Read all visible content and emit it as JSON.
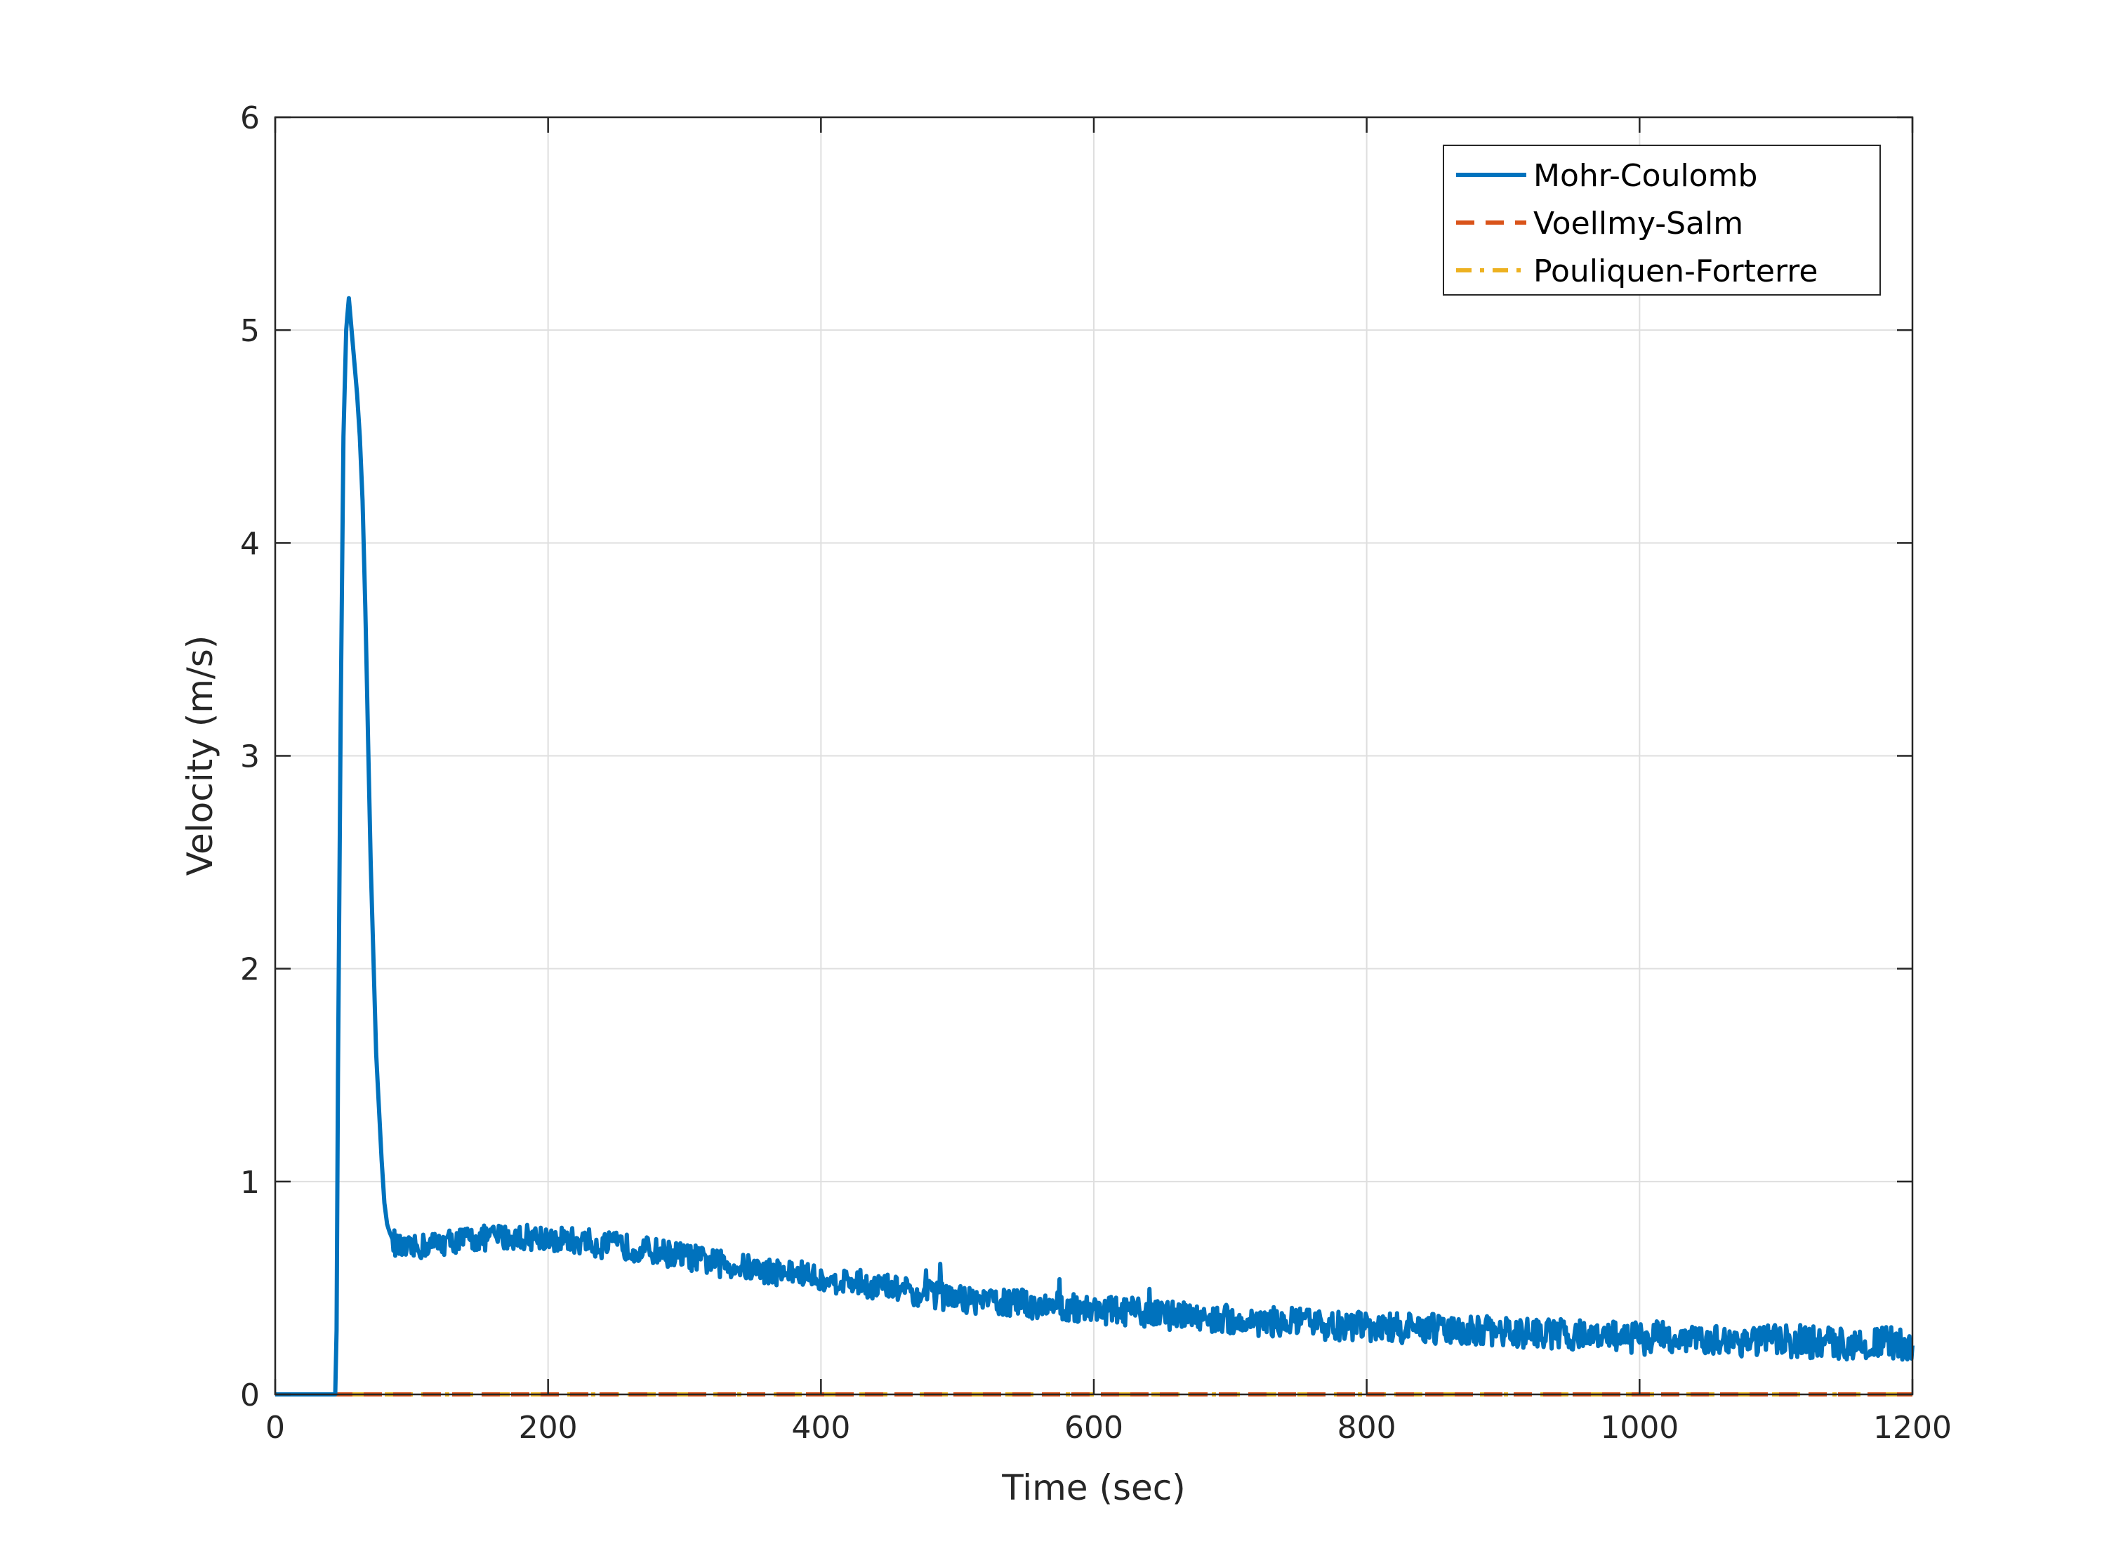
{
  "chart_data": {
    "type": "line",
    "title": "",
    "xlabel": "Time (sec)",
    "ylabel": "Velocity (m/s)",
    "xlim": [
      0,
      1200
    ],
    "ylim": [
      0,
      6
    ],
    "xticks": [
      0,
      200,
      400,
      600,
      800,
      1000,
      1200
    ],
    "yticks": [
      0,
      1,
      2,
      3,
      4,
      5,
      6
    ],
    "grid": true,
    "legend_position": "top-right",
    "series": [
      {
        "name": "Mohr-Coulomb",
        "color": "#0072BD",
        "line_style": "solid",
        "noise_amplitude": 0.06,
        "x": [
          0,
          44,
          45,
          46,
          48,
          50,
          52,
          54,
          56,
          58,
          60,
          62,
          64,
          66,
          68,
          70,
          72,
          74,
          76,
          78,
          80,
          82,
          84,
          86,
          88,
          90,
          95,
          100,
          110,
          120,
          130,
          140,
          150,
          160,
          170,
          180,
          190,
          200,
          210,
          220,
          230,
          240,
          250,
          260,
          270,
          280,
          290,
          300,
          320,
          340,
          360,
          380,
          400,
          420,
          440,
          460,
          480,
          500,
          520,
          540,
          560,
          580,
          600,
          620,
          640,
          660,
          680,
          700,
          720,
          740,
          760,
          780,
          800,
          820,
          840,
          860,
          880,
          900,
          920,
          940,
          960,
          980,
          1000,
          1020,
          1040,
          1060,
          1080,
          1100,
          1120,
          1140,
          1160,
          1180,
          1200
        ],
        "y": [
          0,
          0,
          0.3,
          1.5,
          3.2,
          4.5,
          5.0,
          5.15,
          5.0,
          4.85,
          4.7,
          4.5,
          4.2,
          3.7,
          3.1,
          2.5,
          2.05,
          1.6,
          1.35,
          1.1,
          0.9,
          0.8,
          0.76,
          0.73,
          0.71,
          0.69,
          0.68,
          0.68,
          0.7,
          0.71,
          0.72,
          0.73,
          0.73,
          0.74,
          0.74,
          0.74,
          0.74,
          0.74,
          0.73,
          0.72,
          0.71,
          0.7,
          0.7,
          0.69,
          0.68,
          0.67,
          0.66,
          0.65,
          0.62,
          0.6,
          0.58,
          0.57,
          0.55,
          0.53,
          0.51,
          0.49,
          0.47,
          0.45,
          0.44,
          0.43,
          0.42,
          0.41,
          0.4,
          0.39,
          0.38,
          0.37,
          0.36,
          0.35,
          0.34,
          0.34,
          0.33,
          0.32,
          0.32,
          0.31,
          0.31,
          0.3,
          0.3,
          0.29,
          0.29,
          0.28,
          0.28,
          0.27,
          0.27,
          0.27,
          0.26,
          0.26,
          0.25,
          0.25,
          0.25,
          0.24,
          0.24,
          0.24,
          0.23
        ]
      },
      {
        "name": "Voellmy-Salm",
        "color": "#D95319",
        "line_style": "dashed",
        "x": [
          0,
          1200
        ],
        "y": [
          0,
          0
        ]
      },
      {
        "name": "Pouliquen-Forterre",
        "color": "#EDB120",
        "line_style": "dashdot",
        "x": [
          0,
          1200
        ],
        "y": [
          0,
          0
        ]
      }
    ]
  }
}
